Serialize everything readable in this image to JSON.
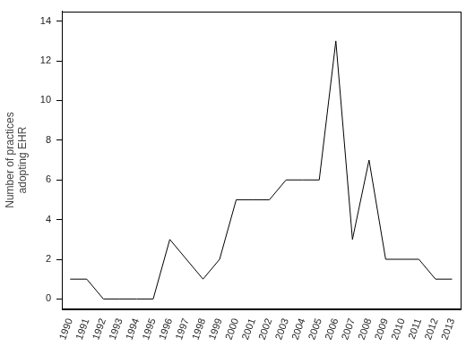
{
  "chart_data": {
    "type": "line",
    "y_label": [
      "Number of practices",
      "adopting EHR"
    ],
    "categories": [
      "1990",
      "1991",
      "1992",
      "1993",
      "1994",
      "1995",
      "1996",
      "1997",
      "1998",
      "1999",
      "2000",
      "2001",
      "2002",
      "2003",
      "2004",
      "2005",
      "2006",
      "2007",
      "2008",
      "2009",
      "2010",
      "2011",
      "2012",
      "2013"
    ],
    "values": [
      1,
      1,
      0,
      0,
      0,
      0,
      3,
      2,
      1,
      2,
      5,
      5,
      5,
      6,
      6,
      6,
      13,
      3,
      7,
      2,
      2,
      2,
      1,
      1
    ],
    "color": "#000000",
    "ylim": [
      -0.5,
      14.5
    ],
    "yticks": [
      0,
      2,
      4,
      6,
      8,
      10,
      12,
      14
    ],
    "grid": false
  }
}
